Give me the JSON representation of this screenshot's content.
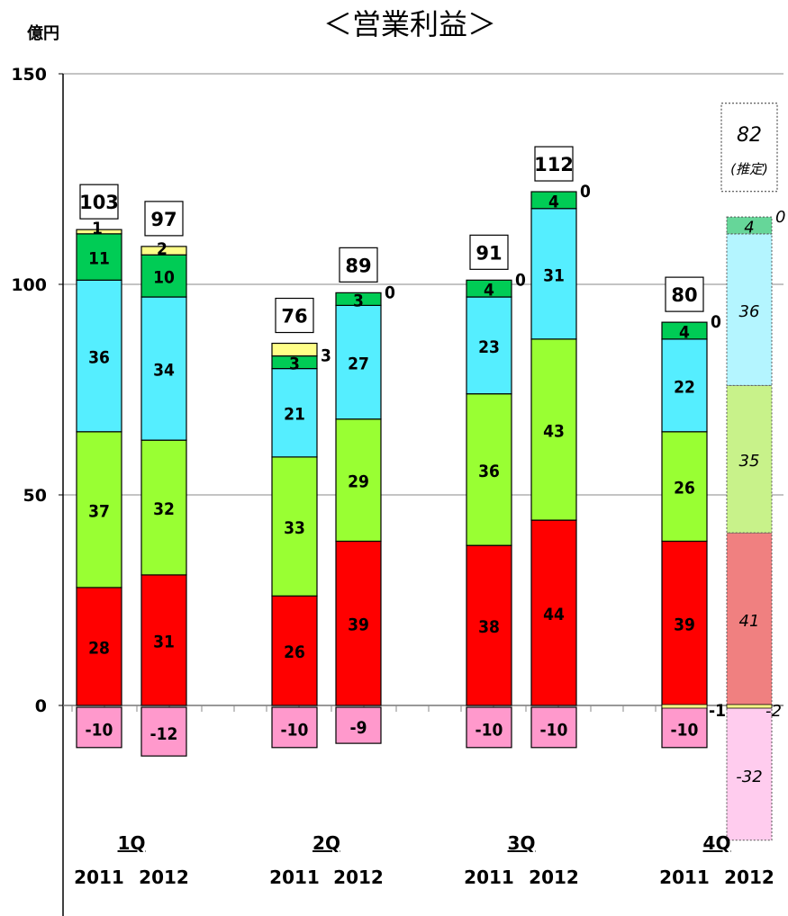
{
  "chart_data": {
    "type": "bar",
    "stacked": true,
    "title": "＜営業利益＞",
    "unit_label": "億円",
    "ylim": [
      -35,
      150
    ],
    "yticks": [
      0,
      50,
      100,
      150
    ],
    "grid": true,
    "quarters": [
      "1Q",
      "2Q",
      "3Q",
      "4Q"
    ],
    "years": [
      "2011",
      "2012"
    ],
    "series_colors": [
      "#ff0000",
      "#99ff33",
      "#55eeff",
      "#00cc55",
      "#ffff88"
    ],
    "negative_color": "#ff99cc",
    "estimate_label": "(推定)",
    "bars": [
      {
        "quarter": "1Q",
        "year": "2011",
        "segments": [
          28,
          37,
          36,
          11,
          1
        ],
        "negative": -10,
        "total": 103
      },
      {
        "quarter": "1Q",
        "year": "2012",
        "segments": [
          31,
          32,
          34,
          10,
          2
        ],
        "negative": -12,
        "total": 97
      },
      {
        "quarter": "2Q",
        "year": "2011",
        "segments": [
          26,
          33,
          21,
          3,
          3
        ],
        "negative": -10,
        "total": 76
      },
      {
        "quarter": "2Q",
        "year": "2012",
        "segments": [
          39,
          29,
          27,
          3,
          0
        ],
        "negative": -9,
        "total": 89
      },
      {
        "quarter": "3Q",
        "year": "2011",
        "segments": [
          38,
          36,
          23,
          4,
          0
        ],
        "negative": -10,
        "total": 91
      },
      {
        "quarter": "3Q",
        "year": "2012",
        "segments": [
          44,
          43,
          31,
          4,
          0
        ],
        "negative": -10,
        "total": 112
      },
      {
        "quarter": "4Q",
        "year": "2011",
        "segments": [
          39,
          26,
          22,
          4,
          0
        ],
        "negative": -10,
        "extra_negative": -1,
        "total": 80
      },
      {
        "quarter": "4Q",
        "year": "2012",
        "segments": [
          41,
          35,
          36,
          4,
          0
        ],
        "negative": -32,
        "extra_negative": -2,
        "total": 82,
        "estimate": true
      }
    ]
  }
}
